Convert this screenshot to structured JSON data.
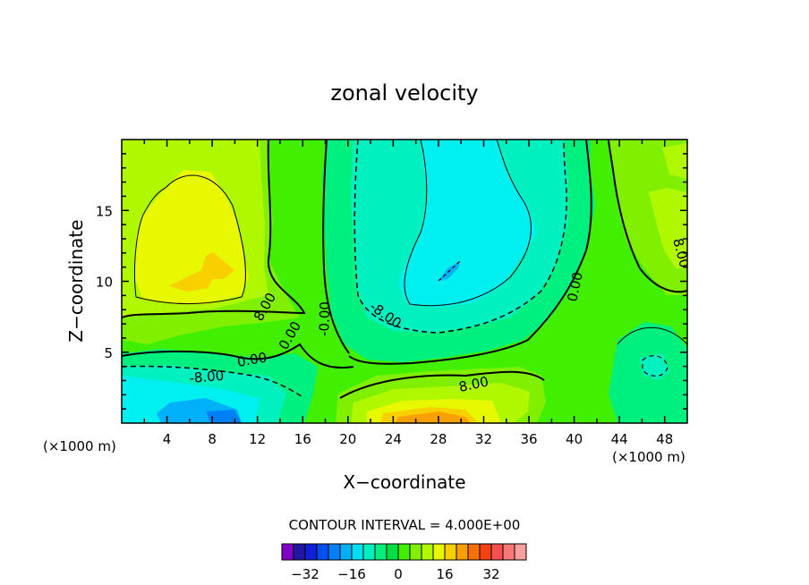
{
  "chart_data": {
    "type": "contour",
    "title": "zonal velocity",
    "xlabel": "X−coordinate",
    "ylabel": "Z−coordinate",
    "x_unit": "(×1000 m)",
    "x_unit_right": "(×1000 m)",
    "xlim": [
      0,
      50
    ],
    "ylim": [
      0,
      20
    ],
    "x_ticks": [
      "4",
      "8",
      "12",
      "16",
      "20",
      "24",
      "28",
      "32",
      "36",
      "40",
      "44",
      "48"
    ],
    "y_ticks": [
      "5",
      "10",
      "15"
    ],
    "contour_interval_text": "CONTOUR INTERVAL = 4.000E+00",
    "contour_labels": [
      "8.00",
      "0.00",
      "-8.00",
      "0.00",
      "-8.00",
      "0.00",
      "8.00",
      "8.00",
      "-0.00",
      "0.00",
      "8.00"
    ],
    "colorbar": {
      "ticks": [
        "−32",
        "−16",
        "0",
        "16",
        "32"
      ],
      "levels": [
        -36,
        -32,
        -28,
        -24,
        -20,
        -16,
        -12,
        -8,
        -4,
        0,
        4,
        8,
        12,
        16,
        20,
        24,
        28,
        32,
        36
      ],
      "colors": [
        "#8000c8",
        "#2018a0",
        "#1020d8",
        "#0050f0",
        "#0080f8",
        "#00b0f8",
        "#00e0f0",
        "#00f0c0",
        "#00f080",
        "#00e040",
        "#40f000",
        "#80f000",
        "#b0f800",
        "#e8f800",
        "#f8d000",
        "#f8a000",
        "#f87000",
        "#f84010",
        "#f85050",
        "#f87878",
        "#f8a0a0"
      ]
    },
    "regions": [
      {
        "name": "upper-left-maximum",
        "value": 12
      },
      {
        "name": "lower-center-maximum",
        "value": 24
      },
      {
        "name": "upper-center-minimum",
        "value": -12
      },
      {
        "name": "lower-left-minimum",
        "value": -20
      }
    ]
  }
}
